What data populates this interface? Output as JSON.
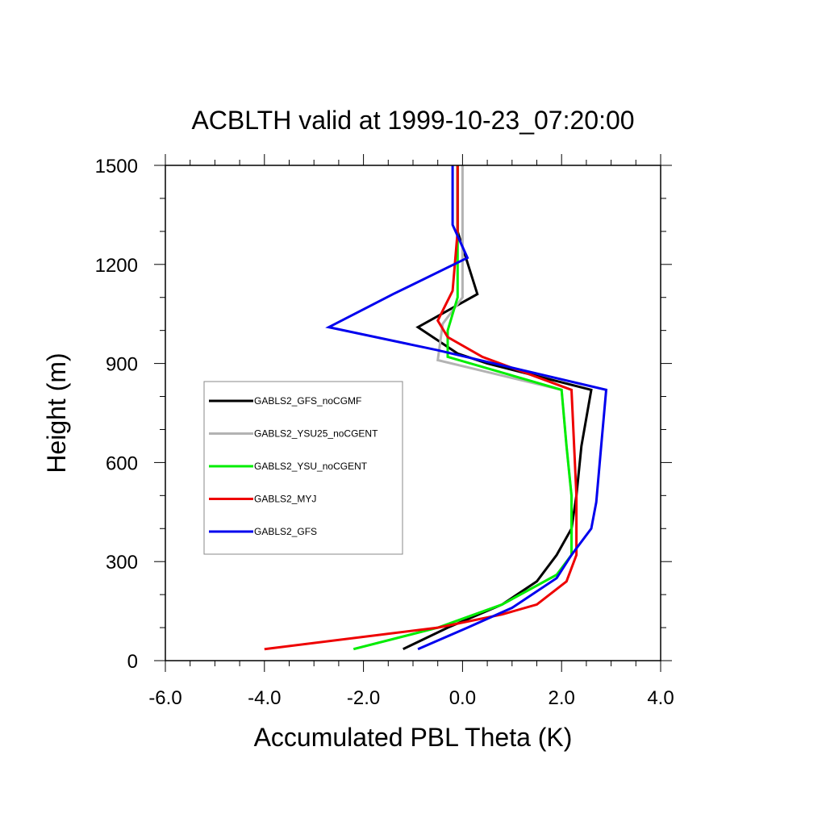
{
  "chart_data": {
    "type": "line",
    "title": "ACBLTH valid at 1999-10-23_07:20:00",
    "xlabel": "Accumulated PBL Theta (K)",
    "ylabel": "Height (m)",
    "xlim": [
      -6.0,
      4.0
    ],
    "ylim": [
      0,
      1500
    ],
    "xticks": [
      "-6.0",
      "-4.0",
      "-2.0",
      "0.0",
      "2.0",
      "4.0"
    ],
    "yticks": [
      "0",
      "300",
      "600",
      "900",
      "1200",
      "1500"
    ],
    "grid": false,
    "legend_position": "middle-left",
    "series": [
      {
        "name": "GABLS2_GFS_noCGMF",
        "color": "#000000",
        "points": [
          [
            -1.2,
            35
          ],
          [
            -0.3,
            100
          ],
          [
            0.8,
            170
          ],
          [
            1.5,
            240
          ],
          [
            1.9,
            320
          ],
          [
            2.2,
            400
          ],
          [
            2.3,
            500
          ],
          [
            2.4,
            650
          ],
          [
            2.6,
            820
          ],
          [
            0.5,
            900
          ],
          [
            -0.1,
            930
          ],
          [
            -0.9,
            1010
          ],
          [
            0.3,
            1110
          ],
          [
            -0.1,
            1300
          ],
          [
            -0.1,
            1500
          ]
        ]
      },
      {
        "name": "GABLS2_YSU25_noCGENT",
        "color": "#b3b3b3",
        "points": [
          [
            -2.2,
            35
          ],
          [
            -0.5,
            100
          ],
          [
            0.8,
            170
          ],
          [
            1.9,
            260
          ],
          [
            2.2,
            320
          ],
          [
            2.2,
            500
          ],
          [
            2.1,
            650
          ],
          [
            2.0,
            820
          ],
          [
            -0.5,
            910
          ],
          [
            -0.4,
            1020
          ],
          [
            0.0,
            1100
          ],
          [
            0.0,
            1300
          ],
          [
            0.0,
            1500
          ]
        ]
      },
      {
        "name": "GABLS2_YSU_noCGENT",
        "color": "#00ee00",
        "points": [
          [
            -2.2,
            35
          ],
          [
            -0.5,
            100
          ],
          [
            0.8,
            170
          ],
          [
            1.9,
            260
          ],
          [
            2.2,
            320
          ],
          [
            2.2,
            500
          ],
          [
            2.1,
            650
          ],
          [
            2.0,
            820
          ],
          [
            -0.3,
            920
          ],
          [
            -0.3,
            1000
          ],
          [
            -0.1,
            1100
          ],
          [
            -0.1,
            1300
          ],
          [
            -0.1,
            1500
          ]
        ]
      },
      {
        "name": "GABLS2_MYJ",
        "color": "#ee0000",
        "points": [
          [
            -4.0,
            35
          ],
          [
            -0.5,
            100
          ],
          [
            0.8,
            140
          ],
          [
            1.5,
            170
          ],
          [
            2.1,
            240
          ],
          [
            2.3,
            320
          ],
          [
            2.3,
            500
          ],
          [
            2.2,
            820
          ],
          [
            0.4,
            920
          ],
          [
            -0.3,
            980
          ],
          [
            -0.5,
            1030
          ],
          [
            -0.2,
            1120
          ],
          [
            -0.1,
            1300
          ],
          [
            -0.1,
            1500
          ]
        ]
      },
      {
        "name": "GABLS2_GFS",
        "color": "#0000ee",
        "points": [
          [
            -0.9,
            35
          ],
          [
            0.1,
            100
          ],
          [
            1.0,
            160
          ],
          [
            1.9,
            250
          ],
          [
            2.2,
            320
          ],
          [
            2.6,
            400
          ],
          [
            2.7,
            480
          ],
          [
            2.8,
            650
          ],
          [
            2.9,
            820
          ],
          [
            -0.5,
            940
          ],
          [
            -2.7,
            1010
          ],
          [
            -1.4,
            1110
          ],
          [
            0.1,
            1220
          ],
          [
            -0.2,
            1320
          ],
          [
            -0.2,
            1500
          ]
        ]
      }
    ]
  }
}
